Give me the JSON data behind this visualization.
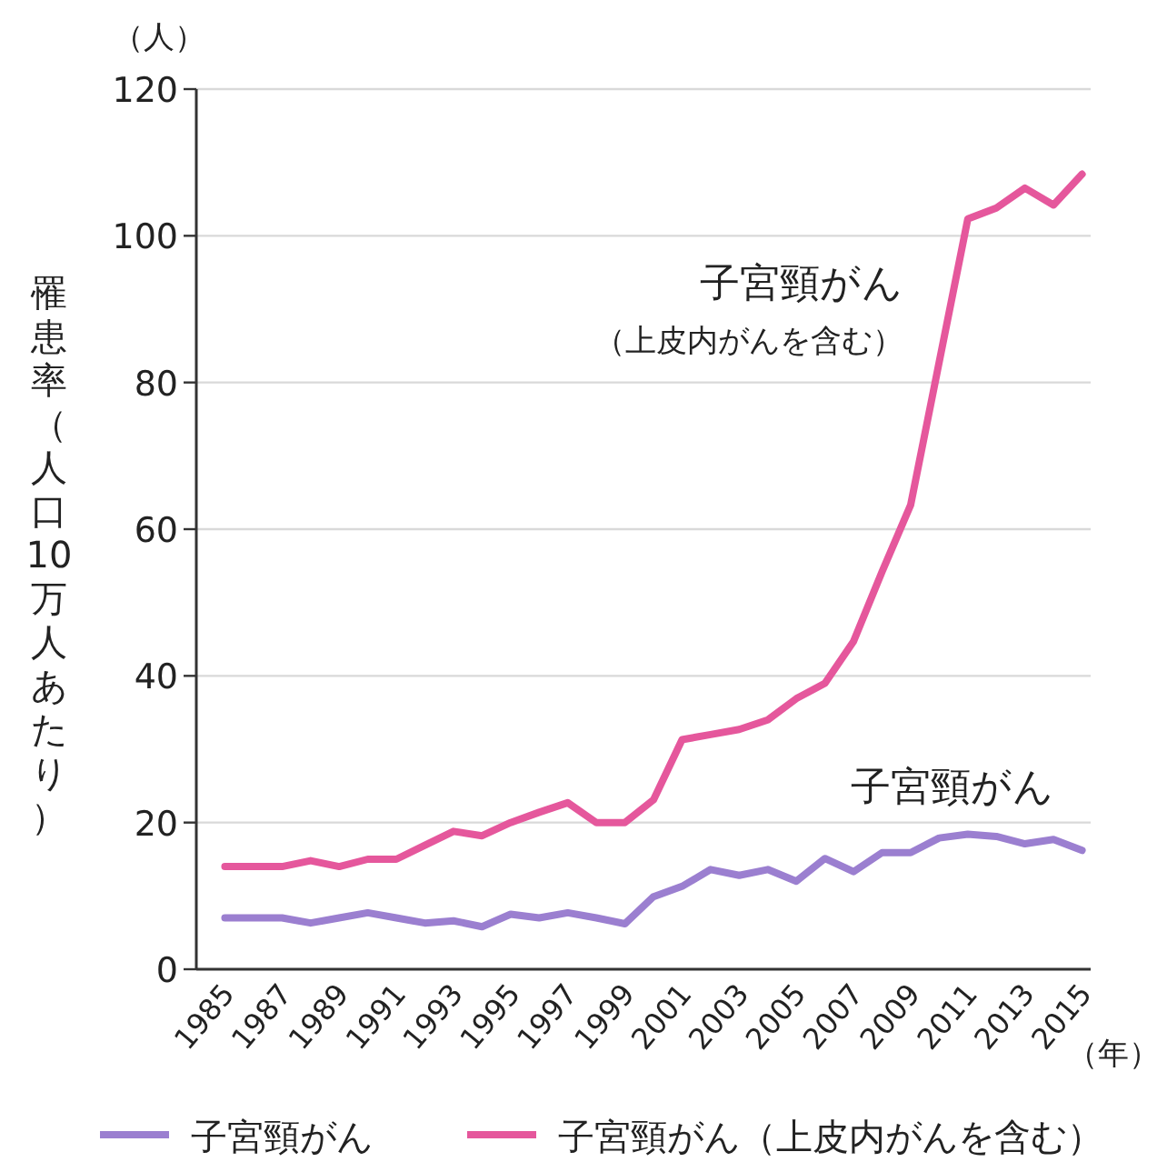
{
  "chart_data": {
    "type": "line",
    "ylabel": "罹患率（人口10万人あたり）",
    "xlabel": "（年）",
    "x": [
      1985,
      1986,
      1987,
      1988,
      1989,
      1990,
      1991,
      1992,
      1993,
      1994,
      1995,
      1996,
      1997,
      1998,
      1999,
      2000,
      2001,
      2002,
      2003,
      2004,
      2005,
      2006,
      2007,
      2008,
      2009,
      2010,
      2011,
      2012,
      2013,
      2014,
      2015
    ],
    "series": [
      {
        "name": "子宮頸がん",
        "color": "#9b7fd0",
        "values": [
          7,
          7,
          7,
          6.3,
          7,
          7.7,
          7,
          6.3,
          6.6,
          5.8,
          7.5,
          7,
          7.7,
          7,
          6.2,
          9.9,
          11.3,
          13.6,
          12.8,
          13.6,
          12,
          15.1,
          13.3,
          15.9,
          15.9,
          17.9,
          18.4,
          18.1,
          17.1,
          17.7,
          16.2
        ]
      },
      {
        "name": "子宮頸がん（上皮内がんを含む）",
        "color": "#e5579c",
        "values": [
          14,
          14,
          14,
          14.8,
          14,
          15,
          15,
          16.9,
          18.8,
          18.2,
          20,
          21.4,
          22.7,
          20,
          20,
          23.1,
          31.3,
          32,
          32.7,
          34,
          36.9,
          39,
          44.7,
          54.2,
          63.3,
          82.8,
          102.3,
          103.8,
          106.5,
          104.2,
          108.4
        ]
      }
    ],
    "xlim": [
      1984,
      2015.3
    ],
    "xticks": [
      1985,
      1987,
      1989,
      1991,
      1993,
      1995,
      1997,
      1999,
      2001,
      2003,
      2005,
      2007,
      2009,
      2011,
      2013,
      2015
    ],
    "ylim": [
      0,
      120
    ],
    "yticks": [
      0,
      20,
      40,
      60,
      80,
      100,
      120
    ],
    "grid": "y",
    "legend": "bottom",
    "marker": "none",
    "line_style": "solid",
    "annotations": [
      "（人）",
      "子宮頸がん",
      "（上皮内がんを含む）",
      "子宮頸がん"
    ]
  }
}
